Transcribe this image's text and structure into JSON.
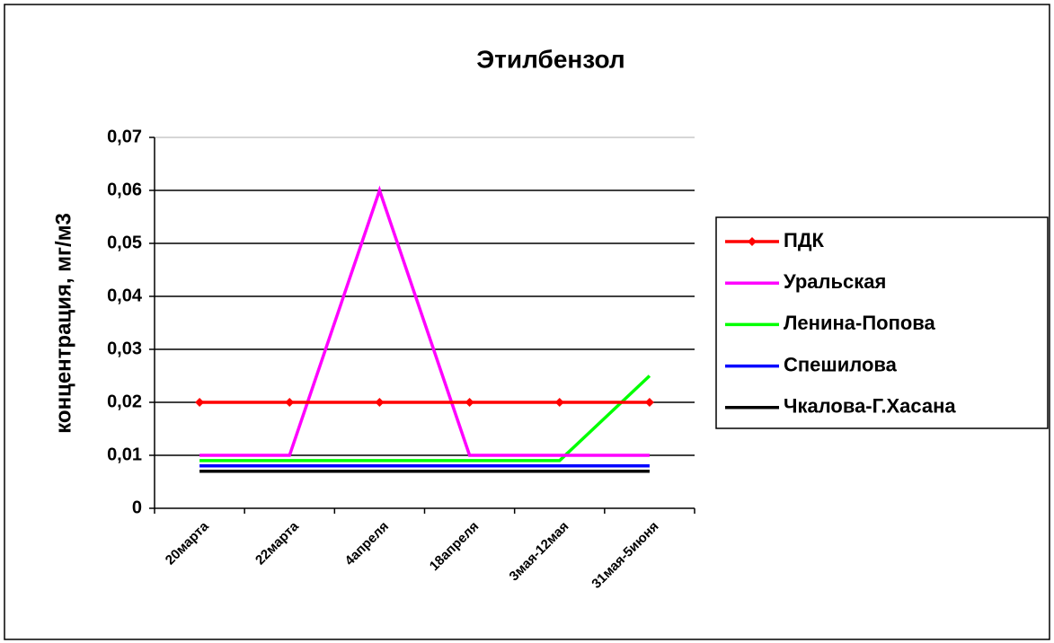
{
  "chart_data": {
    "type": "line",
    "title": "Этилбензол",
    "ylabel": "концентрация, мг/м3",
    "categories": [
      "20марта",
      "22марта",
      "4апреля",
      "18апреля",
      "3мая-12мая",
      "31мая-5июня"
    ],
    "series": [
      {
        "name": "ПДК",
        "color": "#ff0000",
        "marker": "diamond",
        "values": [
          0.02,
          0.02,
          0.02,
          0.02,
          0.02,
          0.02
        ]
      },
      {
        "name": "Уральская",
        "color": "#ff00ff",
        "values": [
          0.01,
          0.01,
          0.06,
          0.01,
          0.01,
          0.01
        ]
      },
      {
        "name": "Ленина-Попова",
        "color": "#00ff00",
        "values": [
          0.009,
          0.009,
          0.009,
          0.009,
          0.009,
          0.025
        ]
      },
      {
        "name": "Спешилова",
        "color": "#0000ff",
        "values": [
          0.008,
          0.008,
          0.008,
          0.008,
          0.008,
          0.008
        ]
      },
      {
        "name": "Чкалова-Г.Хасана",
        "color": "#000000",
        "values": [
          0.007,
          0.007,
          0.007,
          0.007,
          0.007,
          0.007
        ]
      }
    ],
    "ylim": [
      0,
      0.07
    ],
    "yticks": [
      0,
      {
        "value": 0.01,
        "label": "0,01"
      },
      {
        "value": 0.02,
        "label": "0,02"
      },
      {
        "value": 0.03,
        "label": "0,03"
      },
      {
        "value": 0.04,
        "label": "0,04"
      },
      {
        "value": 0.05,
        "label": "0,05"
      },
      {
        "value": 0.06,
        "label": "0,06"
      },
      {
        "value": 0.07,
        "label": "0,07"
      }
    ],
    "grid": true,
    "legend": "right"
  }
}
